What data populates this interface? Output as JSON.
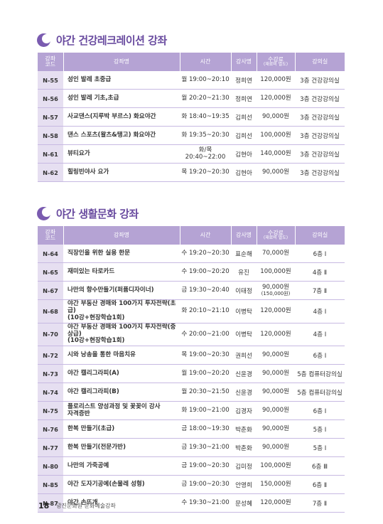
{
  "sections": [
    {
      "title": "야간 건강레크레이션 강좌",
      "headers": [
        "강좌\n코드",
        "강좌명",
        "시간",
        "강사명",
        "수강료",
        "(재료비 별도)",
        "강의실"
      ],
      "rows": [
        {
          "code": "N-55",
          "name": "성인 발레 초중급",
          "time": "월 19:00~20:10",
          "teacher": "정희연",
          "fee": "120,000원",
          "fee2": "",
          "room": "3층 건강강의실"
        },
        {
          "code": "N-56",
          "name": "성인 발레 기초,초급",
          "time": "월 20:20~21:30",
          "teacher": "정희연",
          "fee": "120,000원",
          "fee2": "",
          "room": "3층 건강강의실"
        },
        {
          "code": "N-57",
          "name": "사교댄스(지루박 부르스) 화요야간",
          "time": "화 18:40~19:35",
          "teacher": "김희선",
          "fee": "90,000원",
          "fee2": "",
          "room": "3층 건강강의실"
        },
        {
          "code": "N-58",
          "name": "댄스 스포츠(왈츠&탱고) 화요야간",
          "time": "화 19:35~20:30",
          "teacher": "김희선",
          "fee": "100,000원",
          "fee2": "",
          "room": "3층 건강강의실"
        },
        {
          "code": "N-61",
          "name": " 뷰티요가",
          "time": "화/목\n20:40~22:00",
          "teacher": "김현아",
          "fee": "140,000원",
          "fee2": "",
          "room": "3층 건강강의실"
        },
        {
          "code": "N-62",
          "name": "힐링빈야사 요가",
          "time": "목 19:20~20:30",
          "teacher": "김현아",
          "fee": "90,000원",
          "fee2": "",
          "room": "3층 건강강의실"
        }
      ]
    },
    {
      "title": "야간 생활문화 강좌",
      "headers": [
        "강좌\n코드",
        "강좌명",
        "시간",
        "강사명",
        "수강료",
        "(재료비 별도)",
        "강의실"
      ],
      "rows": [
        {
          "code": "N-64",
          "name": "직장인을 위한 실용 한문",
          "time": "수 19:20~20:30",
          "teacher": "표순해",
          "fee": "70,000원",
          "fee2": "",
          "room": "6층 Ⅰ"
        },
        {
          "code": "N-65",
          "name": "재미있는 타로카드",
          "time": "수 19:00~20:20",
          "teacher": "유진",
          "fee": "100,000원",
          "fee2": "",
          "room": "4층 Ⅱ"
        },
        {
          "code": "N-67",
          "name": "나만의 향수만들기(퍼퓸디자이너)",
          "time": "금 19:30~20:40",
          "teacher": "이태정",
          "fee": "90,000원",
          "fee2": "(150,000원)",
          "room": "7층 Ⅱ"
        },
        {
          "code": "N-68",
          "name": "야간 부동산 경매와 100가지 투자전략(초급)\n(10강+현장학습1회)",
          "time": "화 20:10~21:10",
          "teacher": "이병탁",
          "fee": "120,000원",
          "fee2": "",
          "room": "4층 Ⅰ"
        },
        {
          "code": "N-70",
          "name": "야간 부동산 경매와 100가지 투자전략(중상급)\n(10강+현장학습1회)",
          "time": "수 20:00~21:00",
          "teacher": "이병탁",
          "fee": "120,000원",
          "fee2": "",
          "room": "4층 Ⅰ"
        },
        {
          "code": "N-72",
          "name": "시와 낭송을 통한 마음치유",
          "time": "목 19:00~20:30",
          "teacher": "권희선",
          "fee": "90,000원",
          "fee2": "",
          "room": "6층 Ⅰ"
        },
        {
          "code": "N-73",
          "name": "야간 캘리그라피(A)",
          "time": "월 19:00~20:20",
          "teacher": "신윤경",
          "fee": "90,000원",
          "fee2": "",
          "room": "5층 컴퓨터강의실"
        },
        {
          "code": "N-74",
          "name": "야간 캘리그라피(B)",
          "time": "월 20:30~21:50",
          "teacher": "신윤경",
          "fee": "90,000원",
          "fee2": "",
          "room": "5층 컴퓨터강의실"
        },
        {
          "code": "N-75",
          "name": "플로리스트 양성과정 및 꽃꽂이 강사\n자격증반",
          "time": "화 19:00~21:00",
          "teacher": "김경자",
          "fee": "90,000원",
          "fee2": "",
          "room": "6층 Ⅰ"
        },
        {
          "code": "N-76",
          "name": "한복 만들기(초급)",
          "time": "금 18:00~19:30",
          "teacher": "박춘화",
          "fee": "90,000원",
          "fee2": "",
          "room": "5층 Ⅰ"
        },
        {
          "code": "N-77",
          "name": "한복 만들기(전문가반)",
          "time": "금 19:30~21:00",
          "teacher": "박춘화",
          "fee": "90,000원",
          "fee2": "",
          "room": "5층 Ⅰ"
        },
        {
          "code": "N-80",
          "name": " 나만의 가죽공예",
          "time": "금 19:00~20:30",
          "teacher": "김미정",
          "fee": "100,000원",
          "fee2": "",
          "room": "6층 Ⅲ"
        },
        {
          "code": "N-85",
          "name": "야간 도자기공예(손물레 성형)",
          "time": "금 19:00~20:30",
          "teacher": "안영희",
          "fee": "150,000원",
          "fee2": "",
          "room": "6층 Ⅱ"
        },
        {
          "code": "N-87",
          "name": "야간 손뜨개",
          "time": "수 19:30~21:00",
          "teacher": "문성혜",
          "fee": "120,000원",
          "fee2": "",
          "room": "7층 Ⅱ"
        }
      ]
    }
  ],
  "footer": {
    "page": "18",
    "label": "광진문화원 문화예술강좌"
  }
}
